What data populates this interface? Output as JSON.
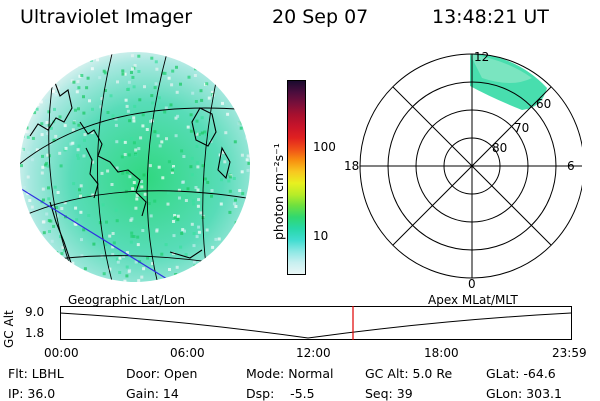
{
  "header": {
    "instrument": "Ultraviolet Imager",
    "date": "20 Sep 07",
    "time": "13:48:21 UT"
  },
  "colorbar": {
    "unit_label": "photon cm⁻²s⁻¹",
    "ticks": [
      "100",
      "10"
    ],
    "colors_top_to_bottom": [
      "#1a0a2e",
      "#4b0d3d",
      "#7a0f3a",
      "#a8102e",
      "#c8142a",
      "#e02020",
      "#f05018",
      "#f89010",
      "#f8c820",
      "#e8f020",
      "#b8ec28",
      "#6ce040",
      "#30d870",
      "#28d8a8",
      "#40dcd0",
      "#8ce8e4",
      "#c8f0f0",
      "#eaf6f6"
    ]
  },
  "polar": {
    "mlt_labels": [
      "12",
      "18",
      "6",
      "0"
    ],
    "mlat_labels": [
      "60",
      "70",
      "80"
    ]
  },
  "timeline": {
    "ylabel": "GC Alt",
    "yticks": [
      "9.0",
      "1.8"
    ],
    "left_title": "Geographic Lat/Lon",
    "right_title": "Apex MLat/MLT",
    "xticks": [
      "00:00",
      "06:00",
      "12:00",
      "18:00",
      "23:59"
    ]
  },
  "footer": [
    [
      "Flt: LBHL",
      "Door: Open",
      "Mode: Normal",
      "GC Alt: 5.0 Re",
      "GLat: -64.6"
    ],
    [
      "IP: 36.0",
      "Gain: 14",
      "Dsp:    -5.5",
      "Seq: 39",
      "GLon: 303.1"
    ]
  ],
  "colors": {
    "marker": "#e00000",
    "terminator": "#3030e0",
    "aurora": "#28d8a0"
  }
}
